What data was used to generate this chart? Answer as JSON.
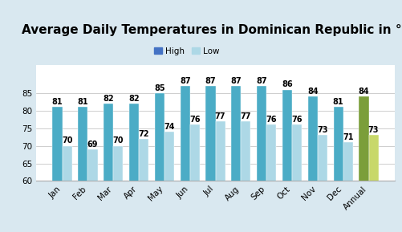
{
  "title": "Average Daily Temperatures in Dominican Republic in °F",
  "categories": [
    "Jan",
    "Feb",
    "Mar",
    "Apr",
    "May",
    "Jun",
    "Jul",
    "Aug",
    "Sep",
    "Oct",
    "Nov",
    "Dec",
    "Annual"
  ],
  "high_values": [
    81,
    81,
    82,
    82,
    85,
    87,
    87,
    87,
    87,
    86,
    84,
    81,
    84
  ],
  "low_values": [
    70,
    69,
    70,
    72,
    74,
    76,
    77,
    77,
    76,
    76,
    73,
    71,
    73
  ],
  "high_color_monthly": "#4BACC6",
  "low_color_monthly": "#ADD8E6",
  "high_color_annual": "#7B9E3A",
  "low_color_annual": "#C8D86A",
  "legend_high_color": "#4472C4",
  "legend_low_color": "#ADD8E6",
  "background_color": "#D9E8F0",
  "plot_bg_color": "#FFFFFF",
  "ylim_min": 60,
  "ylim_max": 93,
  "yticks": [
    60,
    65,
    70,
    75,
    80,
    85
  ],
  "bar_width": 0.38,
  "title_fontsize": 11,
  "tick_fontsize": 7.5,
  "label_fontsize": 7
}
